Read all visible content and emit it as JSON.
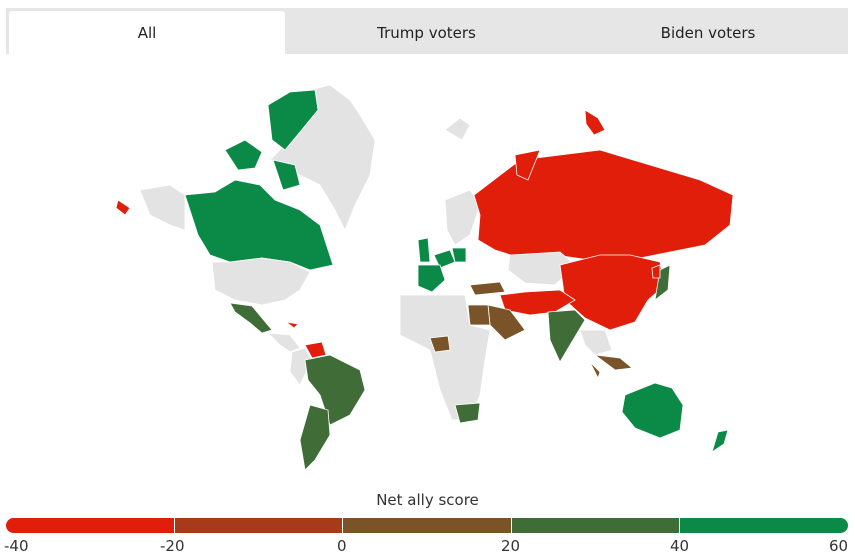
{
  "tabs": [
    {
      "label": "All",
      "active": true
    },
    {
      "label": "Trump voters",
      "active": false
    },
    {
      "label": "Biden voters",
      "active": false
    }
  ],
  "legend": {
    "title": "Net ally score",
    "ticks": [
      "-40",
      "-20",
      "0",
      "20",
      "40",
      "60"
    ],
    "colors": [
      "#e01e0a",
      "#a83a1c",
      "#7a5428",
      "#3f6c37",
      "#0a8a46"
    ]
  },
  "map_colors": {
    "no_data": "#e3e3e3",
    "score_neg40": "#e01e0a",
    "score_neg20": "#a83a1c",
    "score_0": "#7a5428",
    "score_20": "#3f6c37",
    "score_40": "#0a8a46"
  },
  "countries": [
    {
      "name": "Canada",
      "band": "score_40"
    },
    {
      "name": "United Kingdom",
      "band": "score_40"
    },
    {
      "name": "France",
      "band": "score_40"
    },
    {
      "name": "Germany",
      "band": "score_40"
    },
    {
      "name": "Australia",
      "band": "score_40"
    },
    {
      "name": "New Zealand",
      "band": "score_40"
    },
    {
      "name": "Japan",
      "band": "score_20"
    },
    {
      "name": "Mexico",
      "band": "score_20"
    },
    {
      "name": "Brazil",
      "band": "score_20"
    },
    {
      "name": "Argentina",
      "band": "score_20"
    },
    {
      "name": "India",
      "band": "score_20"
    },
    {
      "name": "South Africa",
      "band": "score_20"
    },
    {
      "name": "Saudi Arabia",
      "band": "score_0"
    },
    {
      "name": "Egypt",
      "band": "score_0"
    },
    {
      "name": "Turkey",
      "band": "score_0"
    },
    {
      "name": "Nigeria",
      "band": "score_0"
    },
    {
      "name": "Indonesia",
      "band": "score_0"
    },
    {
      "name": "Russia",
      "band": "score_neg40"
    },
    {
      "name": "China",
      "band": "score_neg40"
    },
    {
      "name": "Iran",
      "band": "score_neg40"
    },
    {
      "name": "North Korea",
      "band": "score_neg40"
    },
    {
      "name": "Venezuela",
      "band": "score_neg40"
    },
    {
      "name": "Cuba",
      "band": "score_neg40"
    },
    {
      "name": "Greenland",
      "band": "no_data"
    },
    {
      "name": "United States",
      "band": "no_data"
    }
  ]
}
